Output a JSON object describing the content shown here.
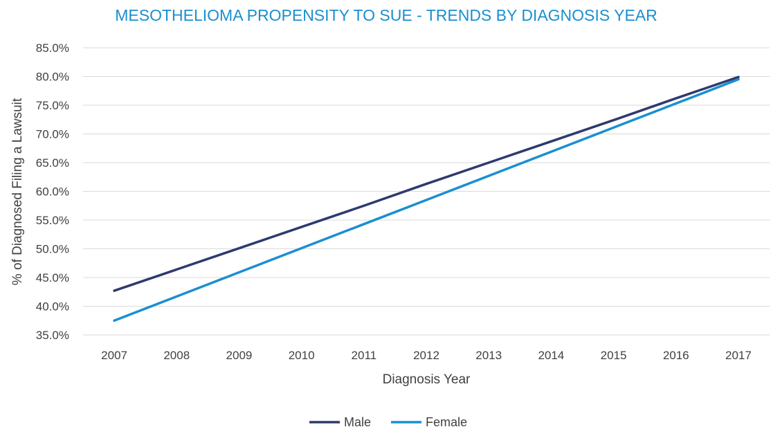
{
  "chart_data": {
    "type": "line",
    "title": "MESOTHELIOMA PROPENSITY TO SUE - TRENDS BY DIAGNOSIS YEAR",
    "xlabel": "Diagnosis Year",
    "ylabel": "% of Diagnosed Filing a Lawsuit",
    "categories": [
      "2007",
      "2008",
      "2009",
      "2010",
      "2011",
      "2012",
      "2013",
      "2014",
      "2015",
      "2016",
      "2017"
    ],
    "yticks": [
      "35.0%",
      "40.0%",
      "45.0%",
      "50.0%",
      "55.0%",
      "60.0%",
      "65.0%",
      "70.0%",
      "75.0%",
      "80.0%",
      "85.0%"
    ],
    "ylim": [
      35,
      85
    ],
    "grid": true,
    "legend_position": "bottom",
    "series": [
      {
        "name": "Male",
        "color": "#2e3a6e",
        "values": [
          42.7,
          46.4,
          50.1,
          53.8,
          57.5,
          61.3,
          65.0,
          68.7,
          72.4,
          76.2,
          79.9
        ]
      },
      {
        "name": "Female",
        "color": "#1a8fcf",
        "values": [
          37.5,
          41.7,
          45.9,
          50.1,
          54.3,
          58.5,
          62.7,
          66.9,
          71.1,
          75.3,
          79.5
        ]
      }
    ]
  }
}
